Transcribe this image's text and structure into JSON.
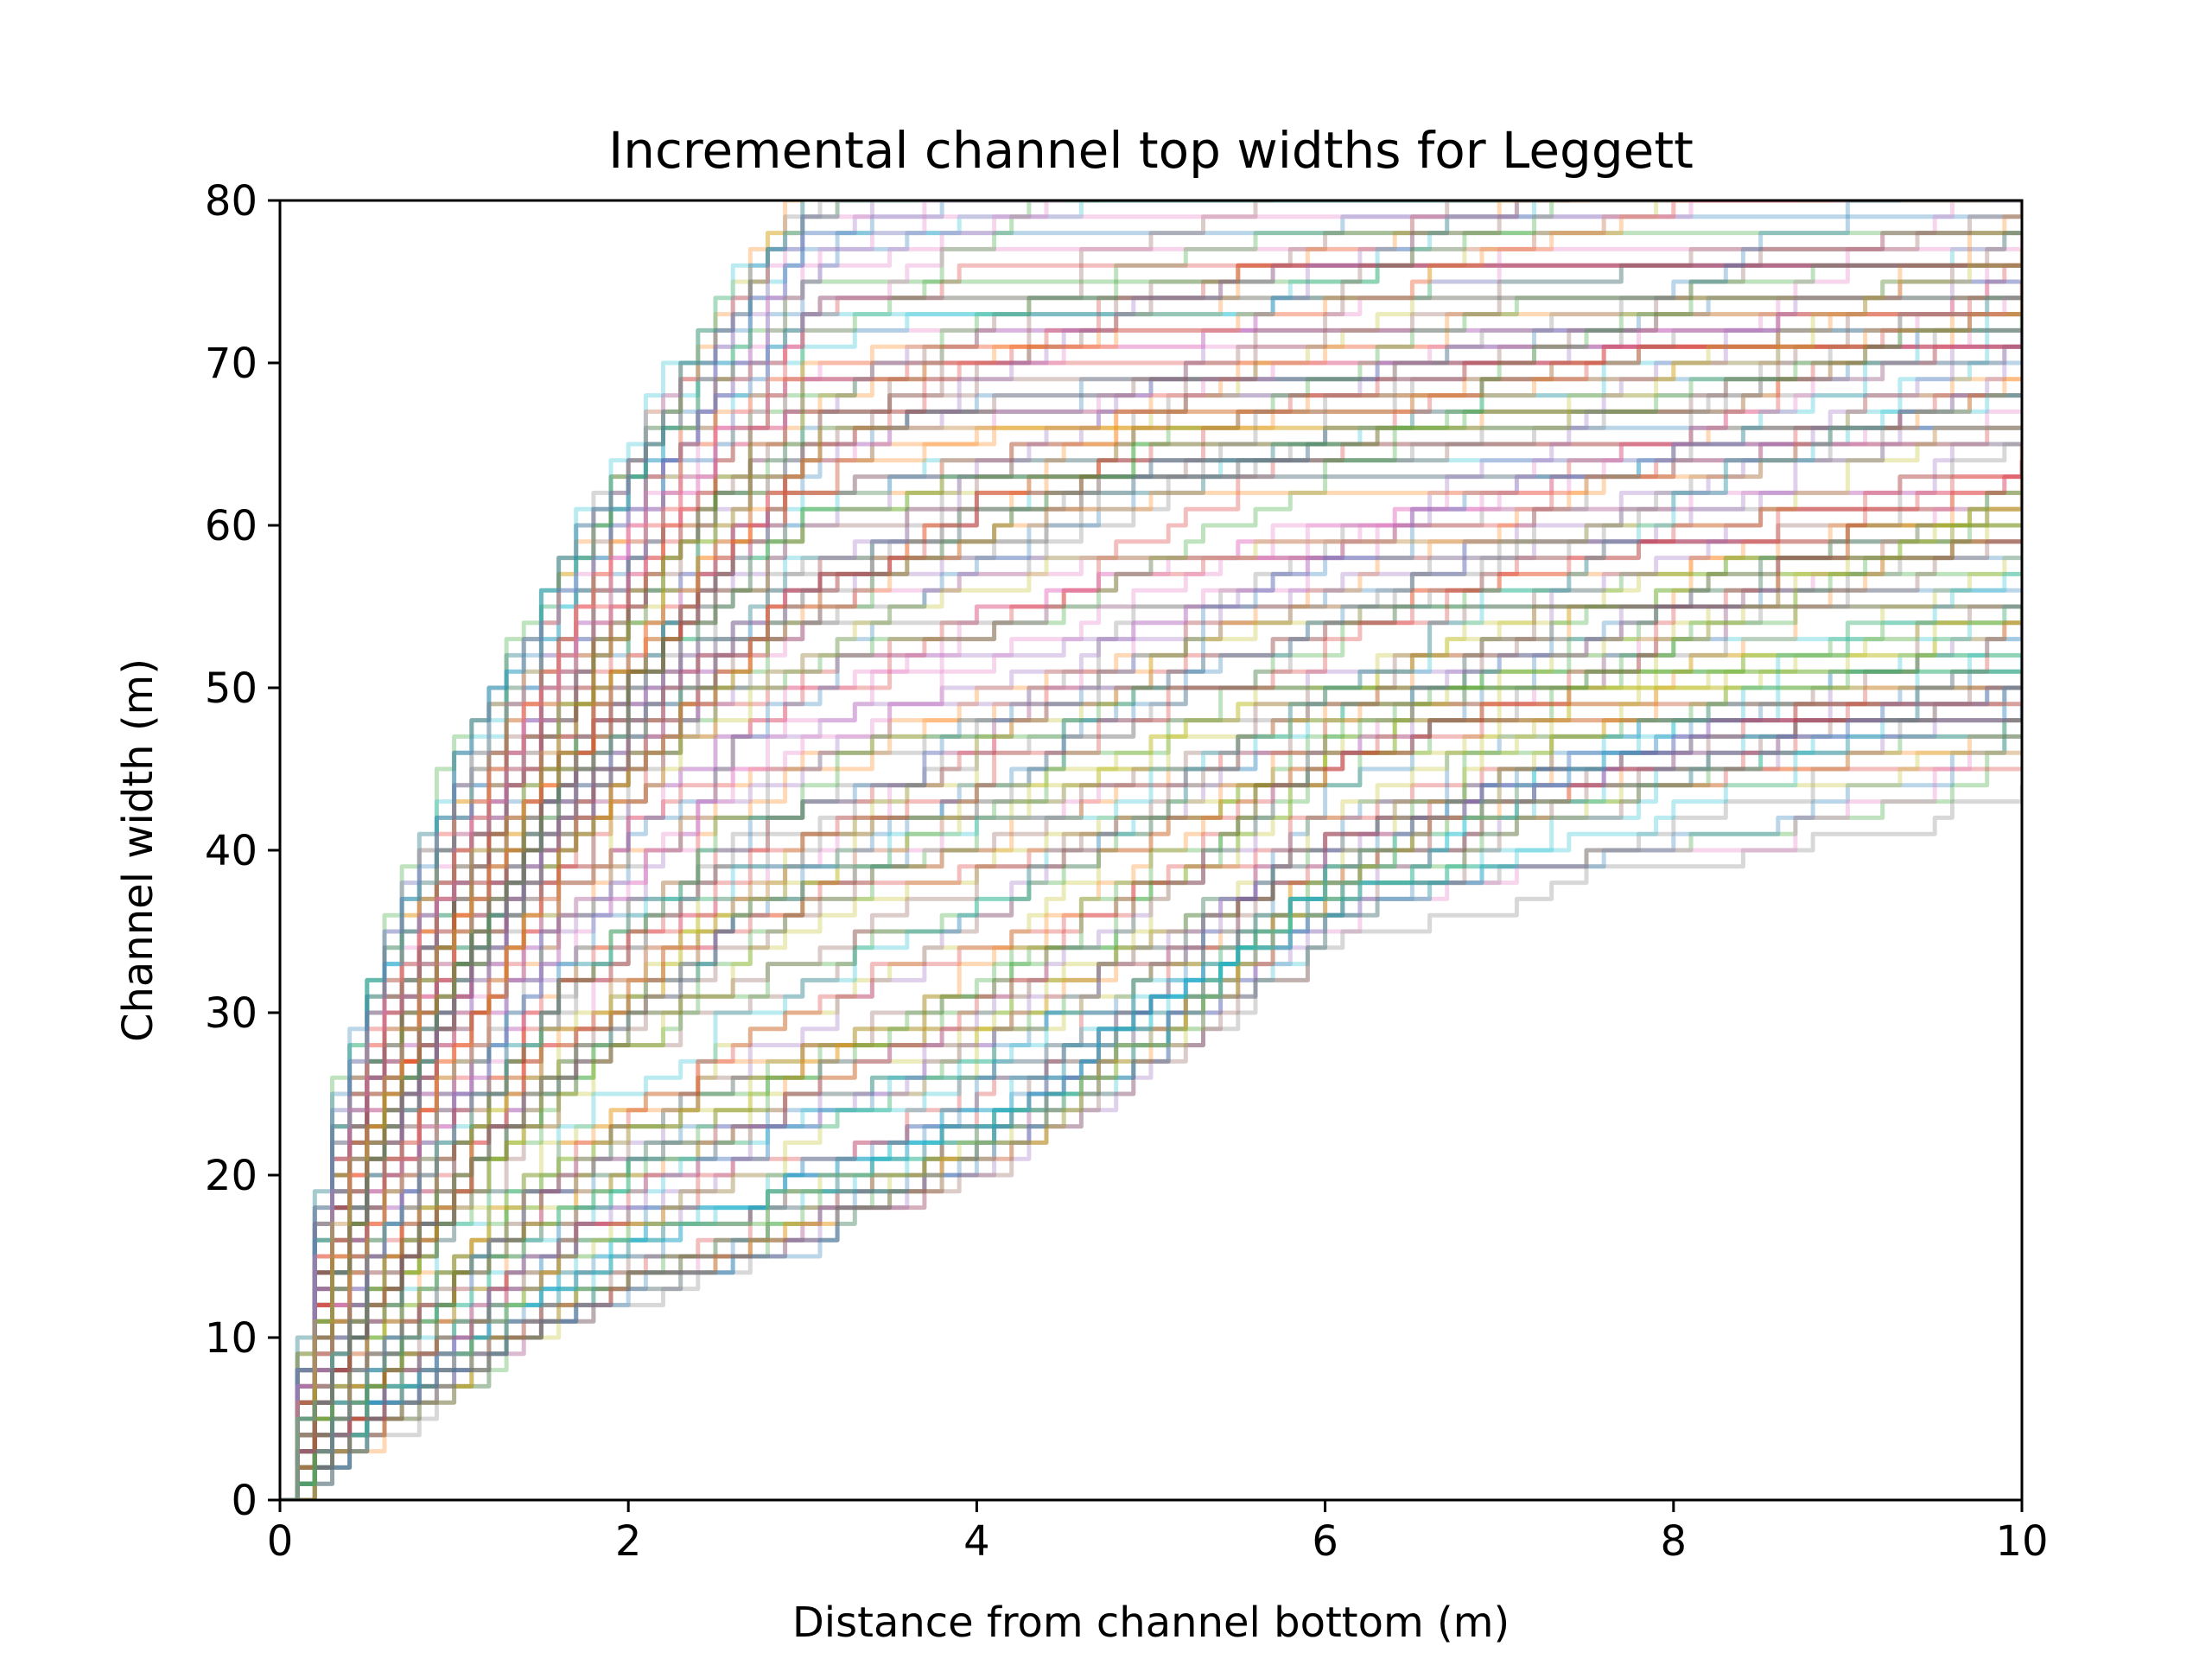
{
  "chart_data": {
    "type": "line",
    "title": "Incremental channel top widths for Leggett",
    "xlabel": "Distance from channel bottom (m)",
    "ylabel": "Channel width (m)",
    "xlim": [
      0,
      10
    ],
    "ylim": [
      0,
      80
    ],
    "x_ticks": [
      "0",
      "2",
      "4",
      "6",
      "8",
      "10"
    ],
    "y_ticks": [
      "0",
      "10",
      "20",
      "30",
      "40",
      "50",
      "60",
      "70",
      "80"
    ],
    "grid": false,
    "legend": "none",
    "series_count": 150,
    "series_alpha": 0.3,
    "colors": [
      "#1f77b4",
      "#ff7f0e",
      "#2ca02c",
      "#d62728",
      "#9467bd",
      "#8c564b",
      "#e377c2",
      "#7f7f7f",
      "#bcbd22",
      "#17becf"
    ],
    "envelope_approx": {
      "x": [
        0,
        0.25,
        0.5,
        1,
        1.5,
        2,
        2.5,
        3,
        4,
        5,
        6,
        7,
        8,
        9,
        10
      ],
      "upper_width": [
        0,
        22,
        32,
        45,
        55,
        65,
        73,
        80,
        80,
        80,
        80,
        80,
        80,
        80,
        80
      ],
      "middle_width": [
        0,
        10,
        17,
        28,
        37,
        43,
        48,
        51,
        55,
        58,
        60,
        62,
        64,
        66,
        68
      ],
      "lower_width": [
        0,
        2,
        4,
        7,
        10,
        12,
        13,
        15,
        19,
        26,
        35,
        40,
        43,
        45,
        47
      ]
    }
  }
}
